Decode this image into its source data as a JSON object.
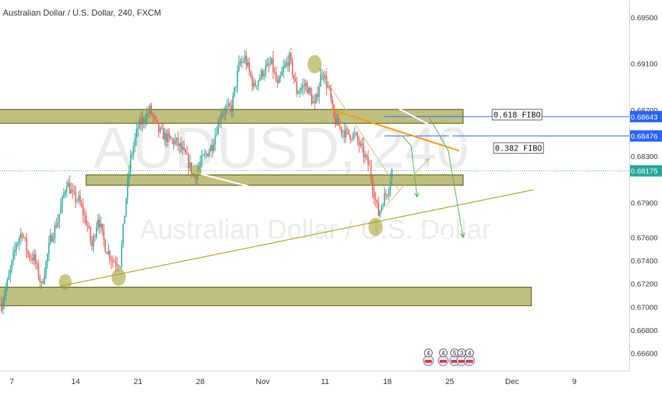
{
  "header": {
    "title": "Australian Dollar / U.S. Dollar, 240, FXCM"
  },
  "watermark": {
    "symbol": "AUDUSD, 240",
    "name": "Australian Dollar / U.S. Dollar"
  },
  "colors": {
    "up": "#26a69a",
    "down": "#ef5350",
    "zone_fill": "#8a8a14",
    "zone_border": "#4a4a00",
    "fibo_line": "#2962ff",
    "trendline": "#ffffff",
    "orange_line": "#ff9800",
    "support_line": "#b0a020",
    "arrow_green": "#4caf50",
    "arrow_olive": "#c8c070"
  },
  "annotations": {
    "fibo_618": "0.618 FIBO",
    "fibo_382": "0.382 FIBO"
  },
  "events": [
    "4",
    "4",
    "5",
    "3",
    "4"
  ],
  "chart_data": {
    "type": "candlestick",
    "title": "Australian Dollar / U.S. Dollar, 240, FXCM",
    "ylim": [
      0.6645,
      0.6965
    ],
    "y_ticks": [
      "0.69500",
      "0.69100",
      "0.68700",
      "0.68300",
      "0.67900",
      "0.67600",
      "0.67400",
      "0.67200",
      "0.67000",
      "0.66800",
      "0.66600"
    ],
    "y_tick_values": [
      0.695,
      0.691,
      0.687,
      0.683,
      0.679,
      0.676,
      0.674,
      0.672,
      0.67,
      0.668,
      0.666
    ],
    "x_ticks": [
      "7",
      "14",
      "21",
      "28",
      "Nov",
      "11",
      "18",
      "25",
      "Dec",
      "9"
    ],
    "x_tick_bars": [
      7,
      50,
      92,
      134,
      176,
      218,
      260,
      302,
      344,
      386
    ],
    "price_labels": [
      {
        "label": "0.68643",
        "value": 0.68643,
        "kind": "fibo"
      },
      {
        "label": "0.68476",
        "value": 0.68476,
        "kind": "fibo"
      },
      {
        "label": "0.68175",
        "value": 0.68175,
        "kind": "last"
      }
    ],
    "candle_anchors": [
      [
        0,
        0.6702
      ],
      [
        5,
        0.6725
      ],
      [
        10,
        0.6755
      ],
      [
        14,
        0.6765
      ],
      [
        18,
        0.6745
      ],
      [
        22,
        0.6742
      ],
      [
        27,
        0.6718
      ],
      [
        33,
        0.6758
      ],
      [
        38,
        0.6775
      ],
      [
        44,
        0.6808
      ],
      [
        48,
        0.6796
      ],
      [
        52,
        0.6792
      ],
      [
        58,
        0.677
      ],
      [
        61,
        0.6752
      ],
      [
        65,
        0.6778
      ],
      [
        70,
        0.6752
      ],
      [
        75,
        0.674
      ],
      [
        80,
        0.6738
      ],
      [
        84,
        0.6795
      ],
      [
        87,
        0.6828
      ],
      [
        92,
        0.6855
      ],
      [
        100,
        0.687
      ],
      [
        106,
        0.6852
      ],
      [
        112,
        0.6845
      ],
      [
        118,
        0.6842
      ],
      [
        124,
        0.683
      ],
      [
        130,
        0.6812
      ],
      [
        135,
        0.6826
      ],
      [
        142,
        0.684
      ],
      [
        148,
        0.6868
      ],
      [
        155,
        0.6872
      ],
      [
        160,
        0.6908
      ],
      [
        164,
        0.6915
      ],
      [
        170,
        0.689
      ],
      [
        176,
        0.6903
      ],
      [
        182,
        0.691
      ],
      [
        186,
        0.689
      ],
      [
        190,
        0.6905
      ],
      [
        194,
        0.6915
      ],
      [
        199,
        0.6886
      ],
      [
        205,
        0.6892
      ],
      [
        211,
        0.6873
      ],
      [
        216,
        0.6905
      ],
      [
        221,
        0.6885
      ],
      [
        224,
        0.6862
      ],
      [
        228,
        0.6855
      ],
      [
        232,
        0.685
      ],
      [
        238,
        0.6848
      ],
      [
        243,
        0.6835
      ],
      [
        248,
        0.682
      ],
      [
        251,
        0.6798
      ],
      [
        254,
        0.678
      ],
      [
        257,
        0.6792
      ],
      [
        260,
        0.68
      ],
      [
        263,
        0.6818
      ]
    ],
    "zones": [
      {
        "from": 0.68705,
        "to": 0.68585,
        "x_start": -2,
        "x_end": 311
      },
      {
        "from": 0.6814,
        "to": 0.6805,
        "x_start": 57,
        "x_end": 311
      },
      {
        "from": 0.6717,
        "to": 0.6701,
        "x_start": -2,
        "x_end": 357
      }
    ],
    "fibo_levels": [
      {
        "value": 0.68643,
        "label": "0.618 FIBO",
        "x_start": 258
      },
      {
        "value": 0.68476,
        "label": "0.382 FIBO",
        "x_start": 258
      }
    ],
    "last_price_line": 0.68175,
    "trendlines": [
      {
        "p1": [
          193,
          0.6922
        ],
        "p2": [
          324,
          0.6833
        ],
        "color": "trendline",
        "width": 2.2
      },
      {
        "p1": [
          129,
          0.68165
        ],
        "p2": [
          319,
          0.6754
        ],
        "color": "trendline",
        "width": 2.2
      },
      {
        "p1": [
          223,
          0.687
        ],
        "p2": [
          308,
          0.6835
        ],
        "color": "orange_line",
        "width": 2
      },
      {
        "p1": [
          40,
          0.6718
        ],
        "p2": [
          358,
          0.6801
        ],
        "color": "support_line",
        "width": 1.2
      },
      {
        "p1": [
          213,
          0.6907
        ],
        "p2": [
          268,
          0.68
        ],
        "color": "arrow_olive",
        "width": 1
      }
    ],
    "arrows": [
      {
        "points": [
          [
            270,
            0.68476
          ],
          [
            276,
            0.6839
          ],
          [
            280,
            0.6795
          ]
        ],
        "color": "arrow_green"
      },
      {
        "points": [
          [
            259,
            0.6787
          ],
          [
            272,
            0.6806
          ],
          [
            288,
            0.6828
          ]
        ],
        "color": "arrow_olive"
      },
      {
        "points": [
          [
            288,
            0.6864
          ],
          [
            301,
            0.6835
          ],
          [
            311,
            0.676
          ]
        ],
        "color": "arrow_green"
      }
    ],
    "circles": [
      {
        "x": 43,
        "value": 0.67215,
        "rx": 9,
        "ry": 11
      },
      {
        "x": 79,
        "value": 0.67255,
        "rx": 10,
        "ry": 12
      },
      {
        "x": 131,
        "value": 0.68175,
        "rx": 8,
        "ry": 8
      },
      {
        "x": 211,
        "value": 0.69095,
        "rx": 10,
        "ry": 13
      },
      {
        "x": 252,
        "value": 0.6769,
        "rx": 10,
        "ry": 13
      }
    ]
  }
}
